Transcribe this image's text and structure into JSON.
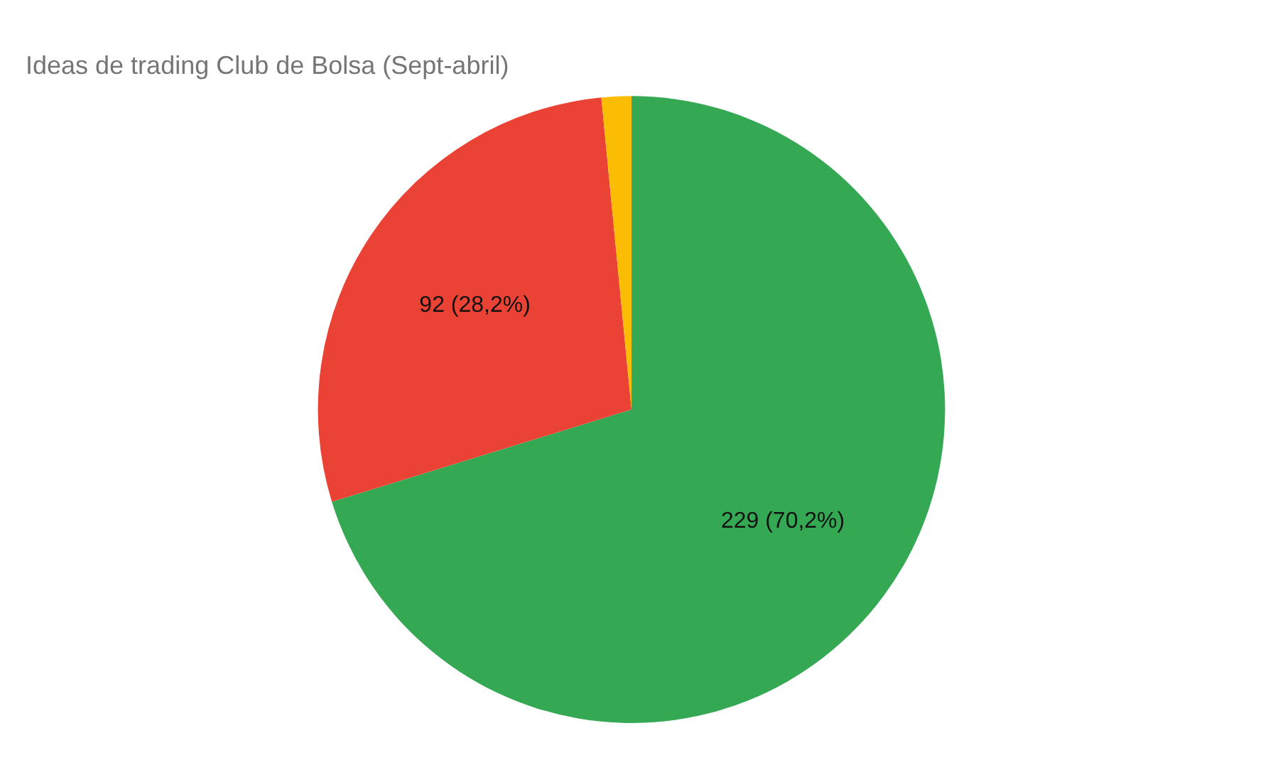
{
  "chart_data": {
    "type": "pie",
    "title": "Ideas de trading Club de Bolsa (Sept-abril)",
    "categories": [
      null,
      null,
      null
    ],
    "values": [
      229,
      92,
      5
    ],
    "colors": [
      "#34a853",
      "#ea4335",
      "#fbbc04"
    ],
    "value_labels": [
      "229 (70,2%)",
      "92 (28,2%)",
      null
    ]
  }
}
